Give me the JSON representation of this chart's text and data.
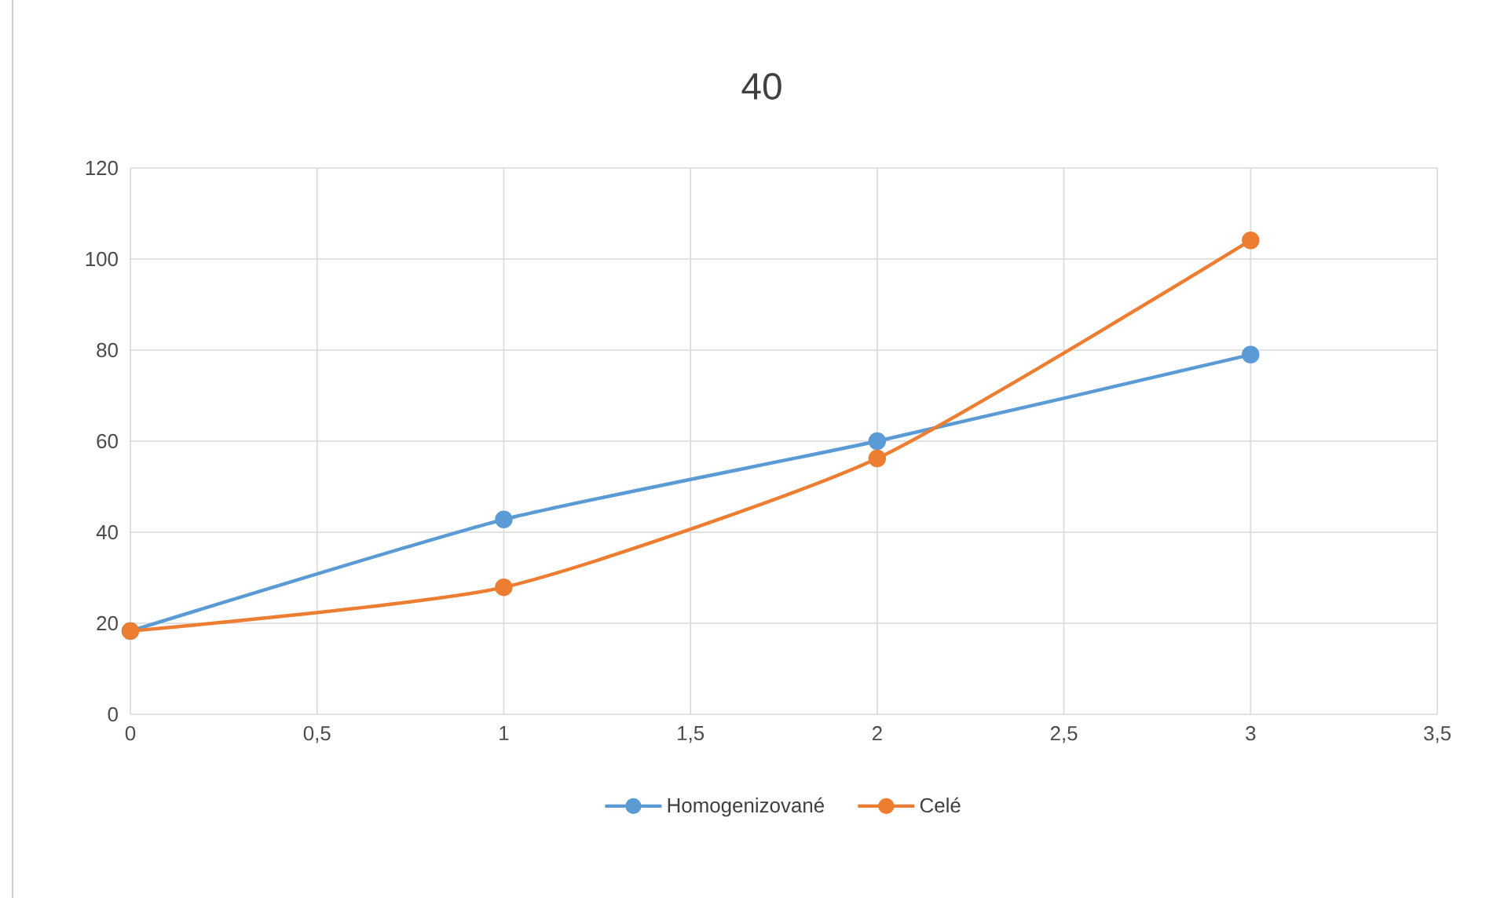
{
  "chart_data": {
    "type": "line",
    "title": "40",
    "x": [
      0,
      1,
      2,
      3
    ],
    "series": [
      {
        "name": "Homogenizované",
        "color": "#5b9bd5",
        "values": [
          18.3,
          42.8,
          60,
          79
        ]
      },
      {
        "name": "Celé",
        "color": "#ed7d31",
        "values": [
          18.3,
          27.9,
          56.2,
          104.1
        ]
      }
    ],
    "xlim": [
      0,
      3.5
    ],
    "xticks": [
      0,
      {
        "value": 0.5,
        "label": "0,5"
      },
      1,
      {
        "value": 1.5,
        "label": "1,5"
      },
      2,
      {
        "value": 2.5,
        "label": "2,5"
      },
      3,
      {
        "value": 3.5,
        "label": "3,5"
      }
    ],
    "ylim": [
      0,
      120
    ],
    "yticks": [
      0,
      20,
      40,
      60,
      80,
      100,
      120
    ],
    "grid": true,
    "legend": "bottom",
    "marker": "circle",
    "line_style": "solid"
  }
}
